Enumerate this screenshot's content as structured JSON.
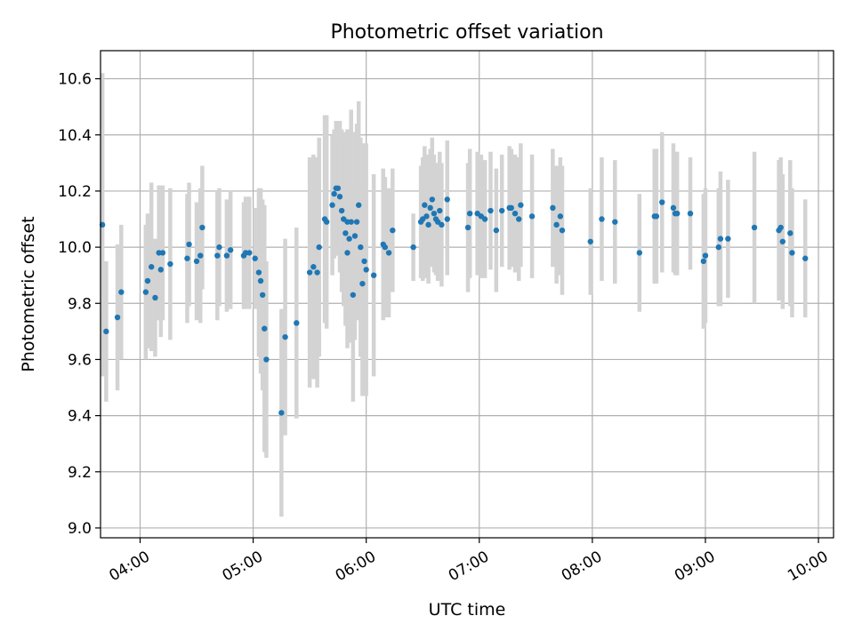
{
  "chart_data": {
    "type": "scatter",
    "title": "Photometric offset variation",
    "xlabel": "UTC time",
    "ylabel": "Photometric offset",
    "x_unit": "time of day (HH:MM)",
    "xlim": [
      "03:39",
      "10:08"
    ],
    "ylim": [
      8.965,
      10.7
    ],
    "x_ticks": [
      "04:00",
      "05:00",
      "06:00",
      "07:00",
      "08:00",
      "09:00",
      "10:00"
    ],
    "y_ticks": [
      "9.0",
      "9.2",
      "9.4",
      "9.6",
      "9.8",
      "10.0",
      "10.2",
      "10.4",
      "10.6"
    ],
    "grid": true,
    "marker_color": "#1f77b4",
    "errorbar_color": "#d3d3d3",
    "points": [
      {
        "x": "03:40",
        "y": 10.08,
        "err": 0.54
      },
      {
        "x": "03:42",
        "y": 9.7,
        "err": 0.25
      },
      {
        "x": "03:48",
        "y": 9.75,
        "err": 0.26
      },
      {
        "x": "03:50",
        "y": 9.84,
        "err": 0.24
      },
      {
        "x": "04:03",
        "y": 9.84,
        "err": 0.24
      },
      {
        "x": "04:04",
        "y": 9.88,
        "err": 0.24
      },
      {
        "x": "04:06",
        "y": 9.93,
        "err": 0.3
      },
      {
        "x": "04:08",
        "y": 9.82,
        "err": 0.21
      },
      {
        "x": "04:10",
        "y": 9.98,
        "err": 0.24
      },
      {
        "x": "04:11",
        "y": 9.92,
        "err": 0.24
      },
      {
        "x": "04:12",
        "y": 9.98,
        "err": 0.24
      },
      {
        "x": "04:16",
        "y": 9.94,
        "err": 0.27
      },
      {
        "x": "04:25",
        "y": 9.96,
        "err": 0.23
      },
      {
        "x": "04:26",
        "y": 10.01,
        "err": 0.22
      },
      {
        "x": "04:30",
        "y": 9.95,
        "err": 0.21
      },
      {
        "x": "04:32",
        "y": 9.97,
        "err": 0.24
      },
      {
        "x": "04:33",
        "y": 10.07,
        "err": 0.22
      },
      {
        "x": "04:41",
        "y": 9.97,
        "err": 0.23
      },
      {
        "x": "04:42",
        "y": 10.0,
        "err": 0.21
      },
      {
        "x": "04:46",
        "y": 9.97,
        "err": 0.2
      },
      {
        "x": "04:48",
        "y": 9.99,
        "err": 0.21
      },
      {
        "x": "04:55",
        "y": 9.97,
        "err": 0.19
      },
      {
        "x": "04:56",
        "y": 9.98,
        "err": 0.2
      },
      {
        "x": "04:58",
        "y": 9.98,
        "err": 0.2
      },
      {
        "x": "05:01",
        "y": 9.96,
        "err": 0.18
      },
      {
        "x": "05:03",
        "y": 9.91,
        "err": 0.3
      },
      {
        "x": "05:04",
        "y": 9.88,
        "err": 0.33
      },
      {
        "x": "05:05",
        "y": 9.83,
        "err": 0.34
      },
      {
        "x": "05:06",
        "y": 9.71,
        "err": 0.44
      },
      {
        "x": "05:07",
        "y": 9.6,
        "err": 0.35
      },
      {
        "x": "05:15",
        "y": 9.41,
        "err": 0.37
      },
      {
        "x": "05:17",
        "y": 9.68,
        "err": 0.35
      },
      {
        "x": "05:23",
        "y": 9.73,
        "err": 0.34
      },
      {
        "x": "05:30",
        "y": 9.91,
        "err": 0.41
      },
      {
        "x": "05:32",
        "y": 9.93,
        "err": 0.4
      },
      {
        "x": "05:34",
        "y": 9.91,
        "err": 0.41
      },
      {
        "x": "05:35",
        "y": 10.0,
        "err": 0.39
      },
      {
        "x": "05:38",
        "y": 10.1,
        "err": 0.37
      },
      {
        "x": "05:39",
        "y": 10.09,
        "err": 0.38
      },
      {
        "x": "05:42",
        "y": 10.15,
        "err": 0.25
      },
      {
        "x": "05:43",
        "y": 10.19,
        "err": 0.23
      },
      {
        "x": "05:44",
        "y": 10.21,
        "err": 0.24
      },
      {
        "x": "05:45",
        "y": 10.21,
        "err": 0.24
      },
      {
        "x": "05:46",
        "y": 10.18,
        "err": 0.27
      },
      {
        "x": "05:47",
        "y": 10.13,
        "err": 0.29
      },
      {
        "x": "05:48",
        "y": 10.1,
        "err": 0.31
      },
      {
        "x": "05:49",
        "y": 10.05,
        "err": 0.33
      },
      {
        "x": "05:50",
        "y": 10.09,
        "err": 0.33
      },
      {
        "x": "05:50",
        "y": 9.98,
        "err": 0.34
      },
      {
        "x": "05:51",
        "y": 10.03,
        "err": 0.37
      },
      {
        "x": "05:52",
        "y": 10.09,
        "err": 0.4
      },
      {
        "x": "05:53",
        "y": 9.83,
        "err": 0.38
      },
      {
        "x": "05:54",
        "y": 10.04,
        "err": 0.37
      },
      {
        "x": "05:55",
        "y": 10.09,
        "err": 0.35
      },
      {
        "x": "05:56",
        "y": 10.15,
        "err": 0.37
      },
      {
        "x": "05:57",
        "y": 10.0,
        "err": 0.39
      },
      {
        "x": "05:58",
        "y": 9.87,
        "err": 0.4
      },
      {
        "x": "05:59",
        "y": 9.95,
        "err": 0.42
      },
      {
        "x": "06:00",
        "y": 9.92,
        "err": 0.45
      },
      {
        "x": "06:04",
        "y": 9.9,
        "err": 0.36
      },
      {
        "x": "06:09",
        "y": 10.01,
        "err": 0.27
      },
      {
        "x": "06:10",
        "y": 10.0,
        "err": 0.25
      },
      {
        "x": "06:12",
        "y": 9.98,
        "err": 0.23
      },
      {
        "x": "06:14",
        "y": 10.06,
        "err": 0.22
      },
      {
        "x": "06:25",
        "y": 10.0,
        "err": 0.12
      },
      {
        "x": "06:29",
        "y": 10.09,
        "err": 0.2
      },
      {
        "x": "06:30",
        "y": 10.1,
        "err": 0.22
      },
      {
        "x": "06:31",
        "y": 10.15,
        "err": 0.21
      },
      {
        "x": "06:32",
        "y": 10.11,
        "err": 0.22
      },
      {
        "x": "06:33",
        "y": 10.08,
        "err": 0.21
      },
      {
        "x": "06:34",
        "y": 10.14,
        "err": 0.21
      },
      {
        "x": "06:35",
        "y": 10.17,
        "err": 0.22
      },
      {
        "x": "06:36",
        "y": 10.12,
        "err": 0.21
      },
      {
        "x": "06:37",
        "y": 10.1,
        "err": 0.2
      },
      {
        "x": "06:38",
        "y": 10.09,
        "err": 0.21
      },
      {
        "x": "06:39",
        "y": 10.13,
        "err": 0.21
      },
      {
        "x": "06:40",
        "y": 10.08,
        "err": 0.22
      },
      {
        "x": "06:43",
        "y": 10.17,
        "err": 0.21
      },
      {
        "x": "06:43",
        "y": 10.1,
        "err": 0.2
      },
      {
        "x": "06:54",
        "y": 10.07,
        "err": 0.23
      },
      {
        "x": "06:55",
        "y": 10.12,
        "err": 0.23
      },
      {
        "x": "06:59",
        "y": 10.12,
        "err": 0.22
      },
      {
        "x": "07:01",
        "y": 10.11,
        "err": 0.22
      },
      {
        "x": "07:03",
        "y": 10.1,
        "err": 0.21
      },
      {
        "x": "07:06",
        "y": 10.13,
        "err": 0.21
      },
      {
        "x": "07:09",
        "y": 10.06,
        "err": 0.22
      },
      {
        "x": "07:12",
        "y": 10.13,
        "err": 0.2
      },
      {
        "x": "07:16",
        "y": 10.14,
        "err": 0.22
      },
      {
        "x": "07:17",
        "y": 10.14,
        "err": 0.21
      },
      {
        "x": "07:19",
        "y": 10.12,
        "err": 0.21
      },
      {
        "x": "07:21",
        "y": 10.1,
        "err": 0.22
      },
      {
        "x": "07:22",
        "y": 10.15,
        "err": 0.22
      },
      {
        "x": "07:28",
        "y": 10.11,
        "err": 0.22
      },
      {
        "x": "07:39",
        "y": 10.14,
        "err": 0.21
      },
      {
        "x": "07:41",
        "y": 10.08,
        "err": 0.21
      },
      {
        "x": "07:43",
        "y": 10.11,
        "err": 0.21
      },
      {
        "x": "07:44",
        "y": 10.06,
        "err": 0.23
      },
      {
        "x": "07:59",
        "y": 10.02,
        "err": 0.19
      },
      {
        "x": "08:05",
        "y": 10.1,
        "err": 0.22
      },
      {
        "x": "08:12",
        "y": 10.09,
        "err": 0.22
      },
      {
        "x": "08:25",
        "y": 9.98,
        "err": 0.21
      },
      {
        "x": "08:33",
        "y": 10.11,
        "err": 0.24
      },
      {
        "x": "08:34",
        "y": 10.11,
        "err": 0.24
      },
      {
        "x": "08:37",
        "y": 10.16,
        "err": 0.25
      },
      {
        "x": "08:43",
        "y": 10.14,
        "err": 0.23
      },
      {
        "x": "08:44",
        "y": 10.12,
        "err": 0.22
      },
      {
        "x": "08:45",
        "y": 10.12,
        "err": 0.22
      },
      {
        "x": "08:52",
        "y": 10.12,
        "err": 0.2
      },
      {
        "x": "08:59",
        "y": 9.95,
        "err": 0.24
      },
      {
        "x": "09:00",
        "y": 9.97,
        "err": 0.24
      },
      {
        "x": "09:07",
        "y": 10.0,
        "err": 0.21
      },
      {
        "x": "09:08",
        "y": 10.03,
        "err": 0.24
      },
      {
        "x": "09:12",
        "y": 10.03,
        "err": 0.21
      },
      {
        "x": "09:26",
        "y": 10.07,
        "err": 0.27
      },
      {
        "x": "09:39",
        "y": 10.06,
        "err": 0.25
      },
      {
        "x": "09:40",
        "y": 10.07,
        "err": 0.25
      },
      {
        "x": "09:41",
        "y": 10.02,
        "err": 0.24
      },
      {
        "x": "09:45",
        "y": 10.05,
        "err": 0.26
      },
      {
        "x": "09:46",
        "y": 9.98,
        "err": 0.23
      },
      {
        "x": "09:53",
        "y": 9.96,
        "err": 0.21
      }
    ]
  }
}
